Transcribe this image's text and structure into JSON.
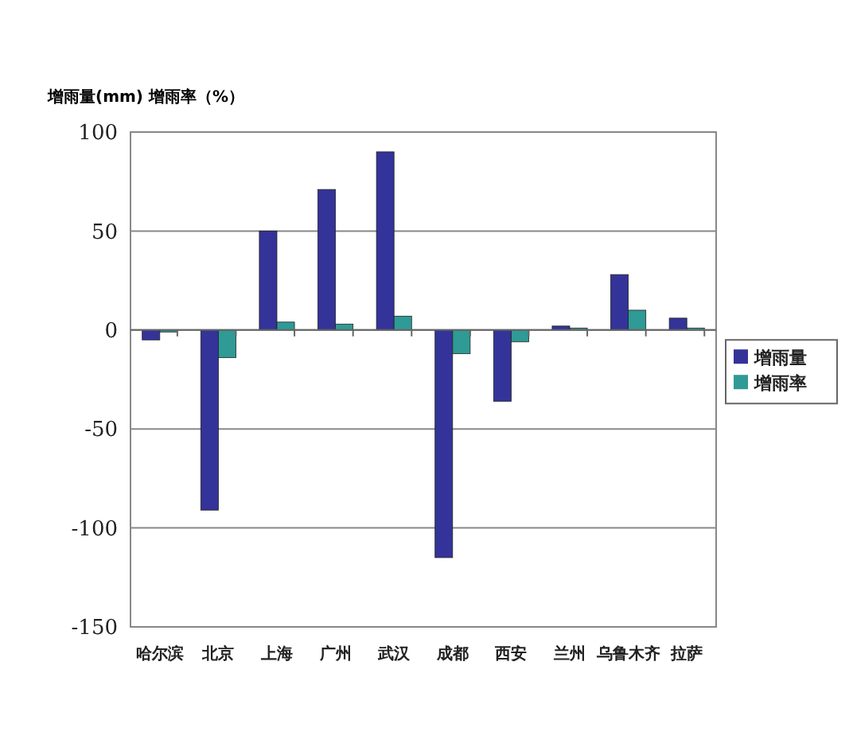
{
  "chart_data": {
    "type": "bar",
    "ylabel": "增雨量(mm) 增雨率（%）",
    "categories": [
      "哈尔滨",
      "北京",
      "上海",
      "广州",
      "武汉",
      "成都",
      "西安",
      "兰州",
      "乌鲁木齐",
      "拉萨"
    ],
    "series": [
      {
        "name": "增雨量",
        "color": "#333399",
        "values": [
          -5,
          -91,
          50,
          71,
          90,
          -115,
          -36,
          2,
          28,
          6
        ]
      },
      {
        "name": "增雨率",
        "color": "#2f9a96",
        "values": [
          -1,
          -14,
          4,
          3,
          7,
          -12,
          -6,
          1,
          10,
          1
        ]
      }
    ],
    "ylim": [
      -150,
      100
    ],
    "yticks": [
      -150,
      -100,
      -50,
      0,
      50,
      100
    ],
    "grid": "y",
    "legend": "right"
  }
}
